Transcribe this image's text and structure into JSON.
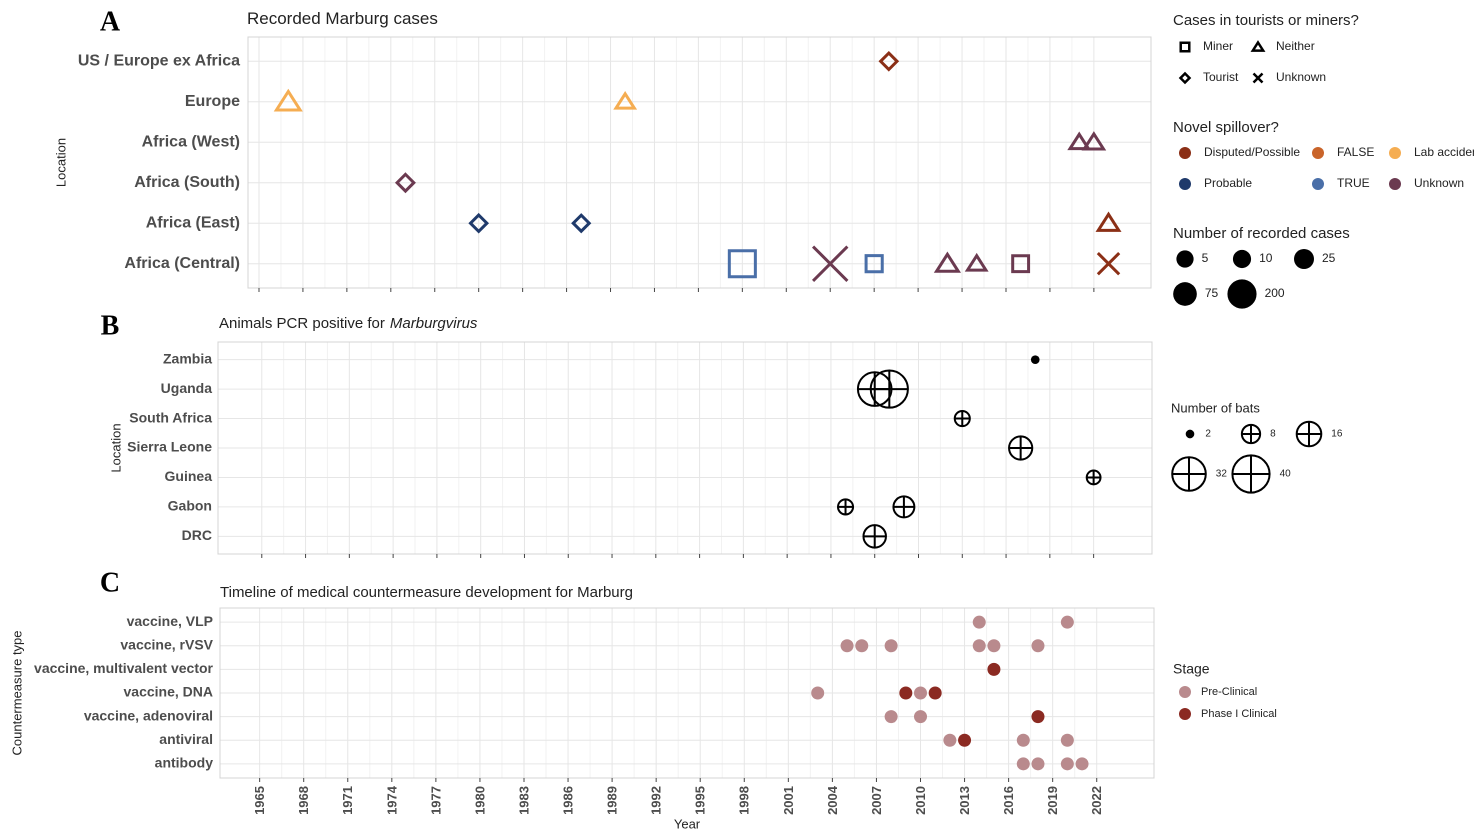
{
  "chart_data": [
    {
      "type": "scatter",
      "panel": "A",
      "title": "Recorded Marburg cases",
      "ylabel": "Location",
      "categories": [
        "US / Europe ex Africa",
        "Europe",
        "Africa (West)",
        "Africa (South)",
        "Africa (East)",
        "Africa (Central)"
      ],
      "xlim": [
        1964.25,
        2025.9
      ],
      "xticks": [
        1965,
        1968,
        1971,
        1974,
        1977,
        1980,
        1983,
        1986,
        1989,
        1992,
        1995,
        1998,
        2001,
        2004,
        2007,
        2010,
        2013,
        2016,
        2019,
        2022
      ],
      "grid": true,
      "shape_legend": {
        "title": "Cases in tourists or miners?",
        "items": [
          {
            "label": "Miner",
            "marker": "square"
          },
          {
            "label": "Neither",
            "marker": "triangle"
          },
          {
            "label": "Tourist",
            "marker": "diamond"
          },
          {
            "label": "Unknown",
            "marker": "cross"
          }
        ]
      },
      "color_legend": {
        "title": "Novel spillover?",
        "items": [
          {
            "label": "Disputed/Possible",
            "color": "#8b2f16"
          },
          {
            "label": "FALSE",
            "color": "#c9642a"
          },
          {
            "label": "Lab accident",
            "color": "#f5ad52"
          },
          {
            "label": "Probable",
            "color": "#1f3a6b"
          },
          {
            "label": "TRUE",
            "color": "#4a6fa8"
          },
          {
            "label": "Unknown",
            "color": "#6b3a50"
          }
        ]
      },
      "size_legend": {
        "title": "Number of recorded cases",
        "values": [
          5,
          10,
          25,
          75,
          200
        ]
      },
      "points": [
        {
          "y": "US / Europe ex Africa",
          "x": 2008,
          "cases": 2,
          "shape": "Tourist",
          "spillover": "Disputed/Possible"
        },
        {
          "y": "Europe",
          "x": 1967,
          "cases": 31,
          "shape": "Neither",
          "spillover": "Lab accident"
        },
        {
          "y": "Europe",
          "x": 1990,
          "cases": 1,
          "shape": "Neither",
          "spillover": "Lab accident"
        },
        {
          "y": "Africa (West)",
          "x": 2021,
          "cases": 1,
          "shape": "Neither",
          "spillover": "Unknown"
        },
        {
          "y": "Africa (West)",
          "x": 2022,
          "cases": 3,
          "shape": "Neither",
          "spillover": "Unknown"
        },
        {
          "y": "Africa (South)",
          "x": 1975,
          "cases": 3,
          "shape": "Tourist",
          "spillover": "Unknown"
        },
        {
          "y": "Africa (East)",
          "x": 1980,
          "cases": 2,
          "shape": "Tourist",
          "spillover": "Probable"
        },
        {
          "y": "Africa (East)",
          "x": 1987,
          "cases": 1,
          "shape": "Tourist",
          "spillover": "Probable"
        },
        {
          "y": "Africa (East)",
          "x": 2023,
          "cases": 8,
          "shape": "Neither",
          "spillover": "Disputed/Possible"
        },
        {
          "y": "Africa (Central)",
          "x": 1998,
          "cases": 154,
          "shape": "Miner",
          "spillover": "TRUE"
        },
        {
          "y": "Africa (Central)",
          "x": 2004,
          "cases": 374,
          "shape": "Unknown",
          "spillover": "Unknown"
        },
        {
          "y": "Africa (Central)",
          "x": 2007,
          "cases": 4,
          "shape": "Miner",
          "spillover": "TRUE"
        },
        {
          "y": "Africa (Central)",
          "x": 2012,
          "cases": 15,
          "shape": "Neither",
          "spillover": "Unknown"
        },
        {
          "y": "Africa (Central)",
          "x": 2014,
          "cases": 1,
          "shape": "Neither",
          "spillover": "Unknown"
        },
        {
          "y": "Africa (Central)",
          "x": 2017,
          "cases": 3,
          "shape": "Miner",
          "spillover": "Unknown"
        },
        {
          "y": "Africa (Central)",
          "x": 2023,
          "cases": 40,
          "shape": "Unknown",
          "spillover": "Disputed/Possible"
        }
      ]
    },
    {
      "type": "bubble",
      "panel": "B",
      "title": "Animals PCR positive for",
      "title_italic": "Marburgvirus",
      "ylabel": "Location",
      "categories": [
        "Zambia",
        "Uganda",
        "South Africa",
        "Sierra Leone",
        "Guinea",
        "Gabon",
        "DRC"
      ],
      "xlim": [
        1962.0,
        2026.0
      ],
      "xticks": [
        1965,
        1968,
        1971,
        1974,
        1977,
        1980,
        1983,
        1986,
        1989,
        1992,
        1995,
        1998,
        2001,
        2004,
        2007,
        2010,
        2013,
        2016,
        2019,
        2022
      ],
      "grid": true,
      "size_legend": {
        "title": "Number of bats",
        "values": [
          2,
          8,
          16,
          32,
          40
        ]
      },
      "points": [
        {
          "y": "Zambia",
          "x": 2018,
          "bats": 2
        },
        {
          "y": "Uganda",
          "x": 2007,
          "bats": 32
        },
        {
          "y": "Uganda",
          "x": 2008,
          "bats": 40
        },
        {
          "y": "South Africa",
          "x": 2013,
          "bats": 5
        },
        {
          "y": "Sierra Leone",
          "x": 2017,
          "bats": 14
        },
        {
          "y": "Guinea",
          "x": 2022,
          "bats": 4
        },
        {
          "y": "Gabon",
          "x": 2005,
          "bats": 5
        },
        {
          "y": "Gabon",
          "x": 2009,
          "bats": 11
        },
        {
          "y": "DRC",
          "x": 2007,
          "bats": 13
        }
      ]
    },
    {
      "type": "dot",
      "panel": "C",
      "title": "Timeline of medical countermeasure development for Marburg",
      "ylabel": "Countermeasure type",
      "xlabel": "Year",
      "categories": [
        "vaccine, VLP",
        "vaccine, rVSV",
        "vaccine, multivalent vector",
        "vaccine, DNA",
        "vaccine, adenoviral",
        "antiviral",
        "antibody"
      ],
      "xlim": [
        1962.3,
        2025.9
      ],
      "xticks": [
        1965,
        1968,
        1971,
        1974,
        1977,
        1980,
        1983,
        1986,
        1989,
        1992,
        1995,
        1998,
        2001,
        2004,
        2007,
        2010,
        2013,
        2016,
        2019,
        2022
      ],
      "grid": true,
      "color_legend": {
        "title": "Stage",
        "items": [
          {
            "label": "Pre-Clinical",
            "color": "#b98a8d"
          },
          {
            "label": "Phase I Clinical",
            "color": "#8b2a22"
          }
        ]
      },
      "points": [
        {
          "y": "vaccine, VLP",
          "x": 2014,
          "stage": "Pre-Clinical"
        },
        {
          "y": "vaccine, VLP",
          "x": 2020,
          "stage": "Pre-Clinical"
        },
        {
          "y": "vaccine, rVSV",
          "x": 2005,
          "stage": "Pre-Clinical"
        },
        {
          "y": "vaccine, rVSV",
          "x": 2006,
          "stage": "Pre-Clinical"
        },
        {
          "y": "vaccine, rVSV",
          "x": 2008,
          "stage": "Pre-Clinical"
        },
        {
          "y": "vaccine, rVSV",
          "x": 2014,
          "stage": "Pre-Clinical"
        },
        {
          "y": "vaccine, rVSV",
          "x": 2015,
          "stage": "Pre-Clinical"
        },
        {
          "y": "vaccine, rVSV",
          "x": 2018,
          "stage": "Pre-Clinical"
        },
        {
          "y": "vaccine, multivalent vector",
          "x": 2015,
          "stage": "Phase I Clinical"
        },
        {
          "y": "vaccine, DNA",
          "x": 2003,
          "stage": "Pre-Clinical"
        },
        {
          "y": "vaccine, DNA",
          "x": 2009,
          "stage": "Phase I Clinical"
        },
        {
          "y": "vaccine, DNA",
          "x": 2010,
          "stage": "Pre-Clinical"
        },
        {
          "y": "vaccine, DNA",
          "x": 2011,
          "stage": "Phase I Clinical"
        },
        {
          "y": "vaccine, adenoviral",
          "x": 2008,
          "stage": "Pre-Clinical"
        },
        {
          "y": "vaccine, adenoviral",
          "x": 2010,
          "stage": "Pre-Clinical"
        },
        {
          "y": "vaccine, adenoviral",
          "x": 2018,
          "stage": "Phase I Clinical"
        },
        {
          "y": "antiviral",
          "x": 2012,
          "stage": "Pre-Clinical"
        },
        {
          "y": "antiviral",
          "x": 2013,
          "stage": "Phase I Clinical"
        },
        {
          "y": "antiviral",
          "x": 2017,
          "stage": "Pre-Clinical"
        },
        {
          "y": "antiviral",
          "x": 2020,
          "stage": "Pre-Clinical"
        },
        {
          "y": "antibody",
          "x": 2017,
          "stage": "Pre-Clinical"
        },
        {
          "y": "antibody",
          "x": 2018,
          "stage": "Pre-Clinical"
        },
        {
          "y": "antibody",
          "x": 2020,
          "stage": "Pre-Clinical"
        },
        {
          "y": "antibody",
          "x": 2021,
          "stage": "Pre-Clinical"
        }
      ]
    }
  ]
}
